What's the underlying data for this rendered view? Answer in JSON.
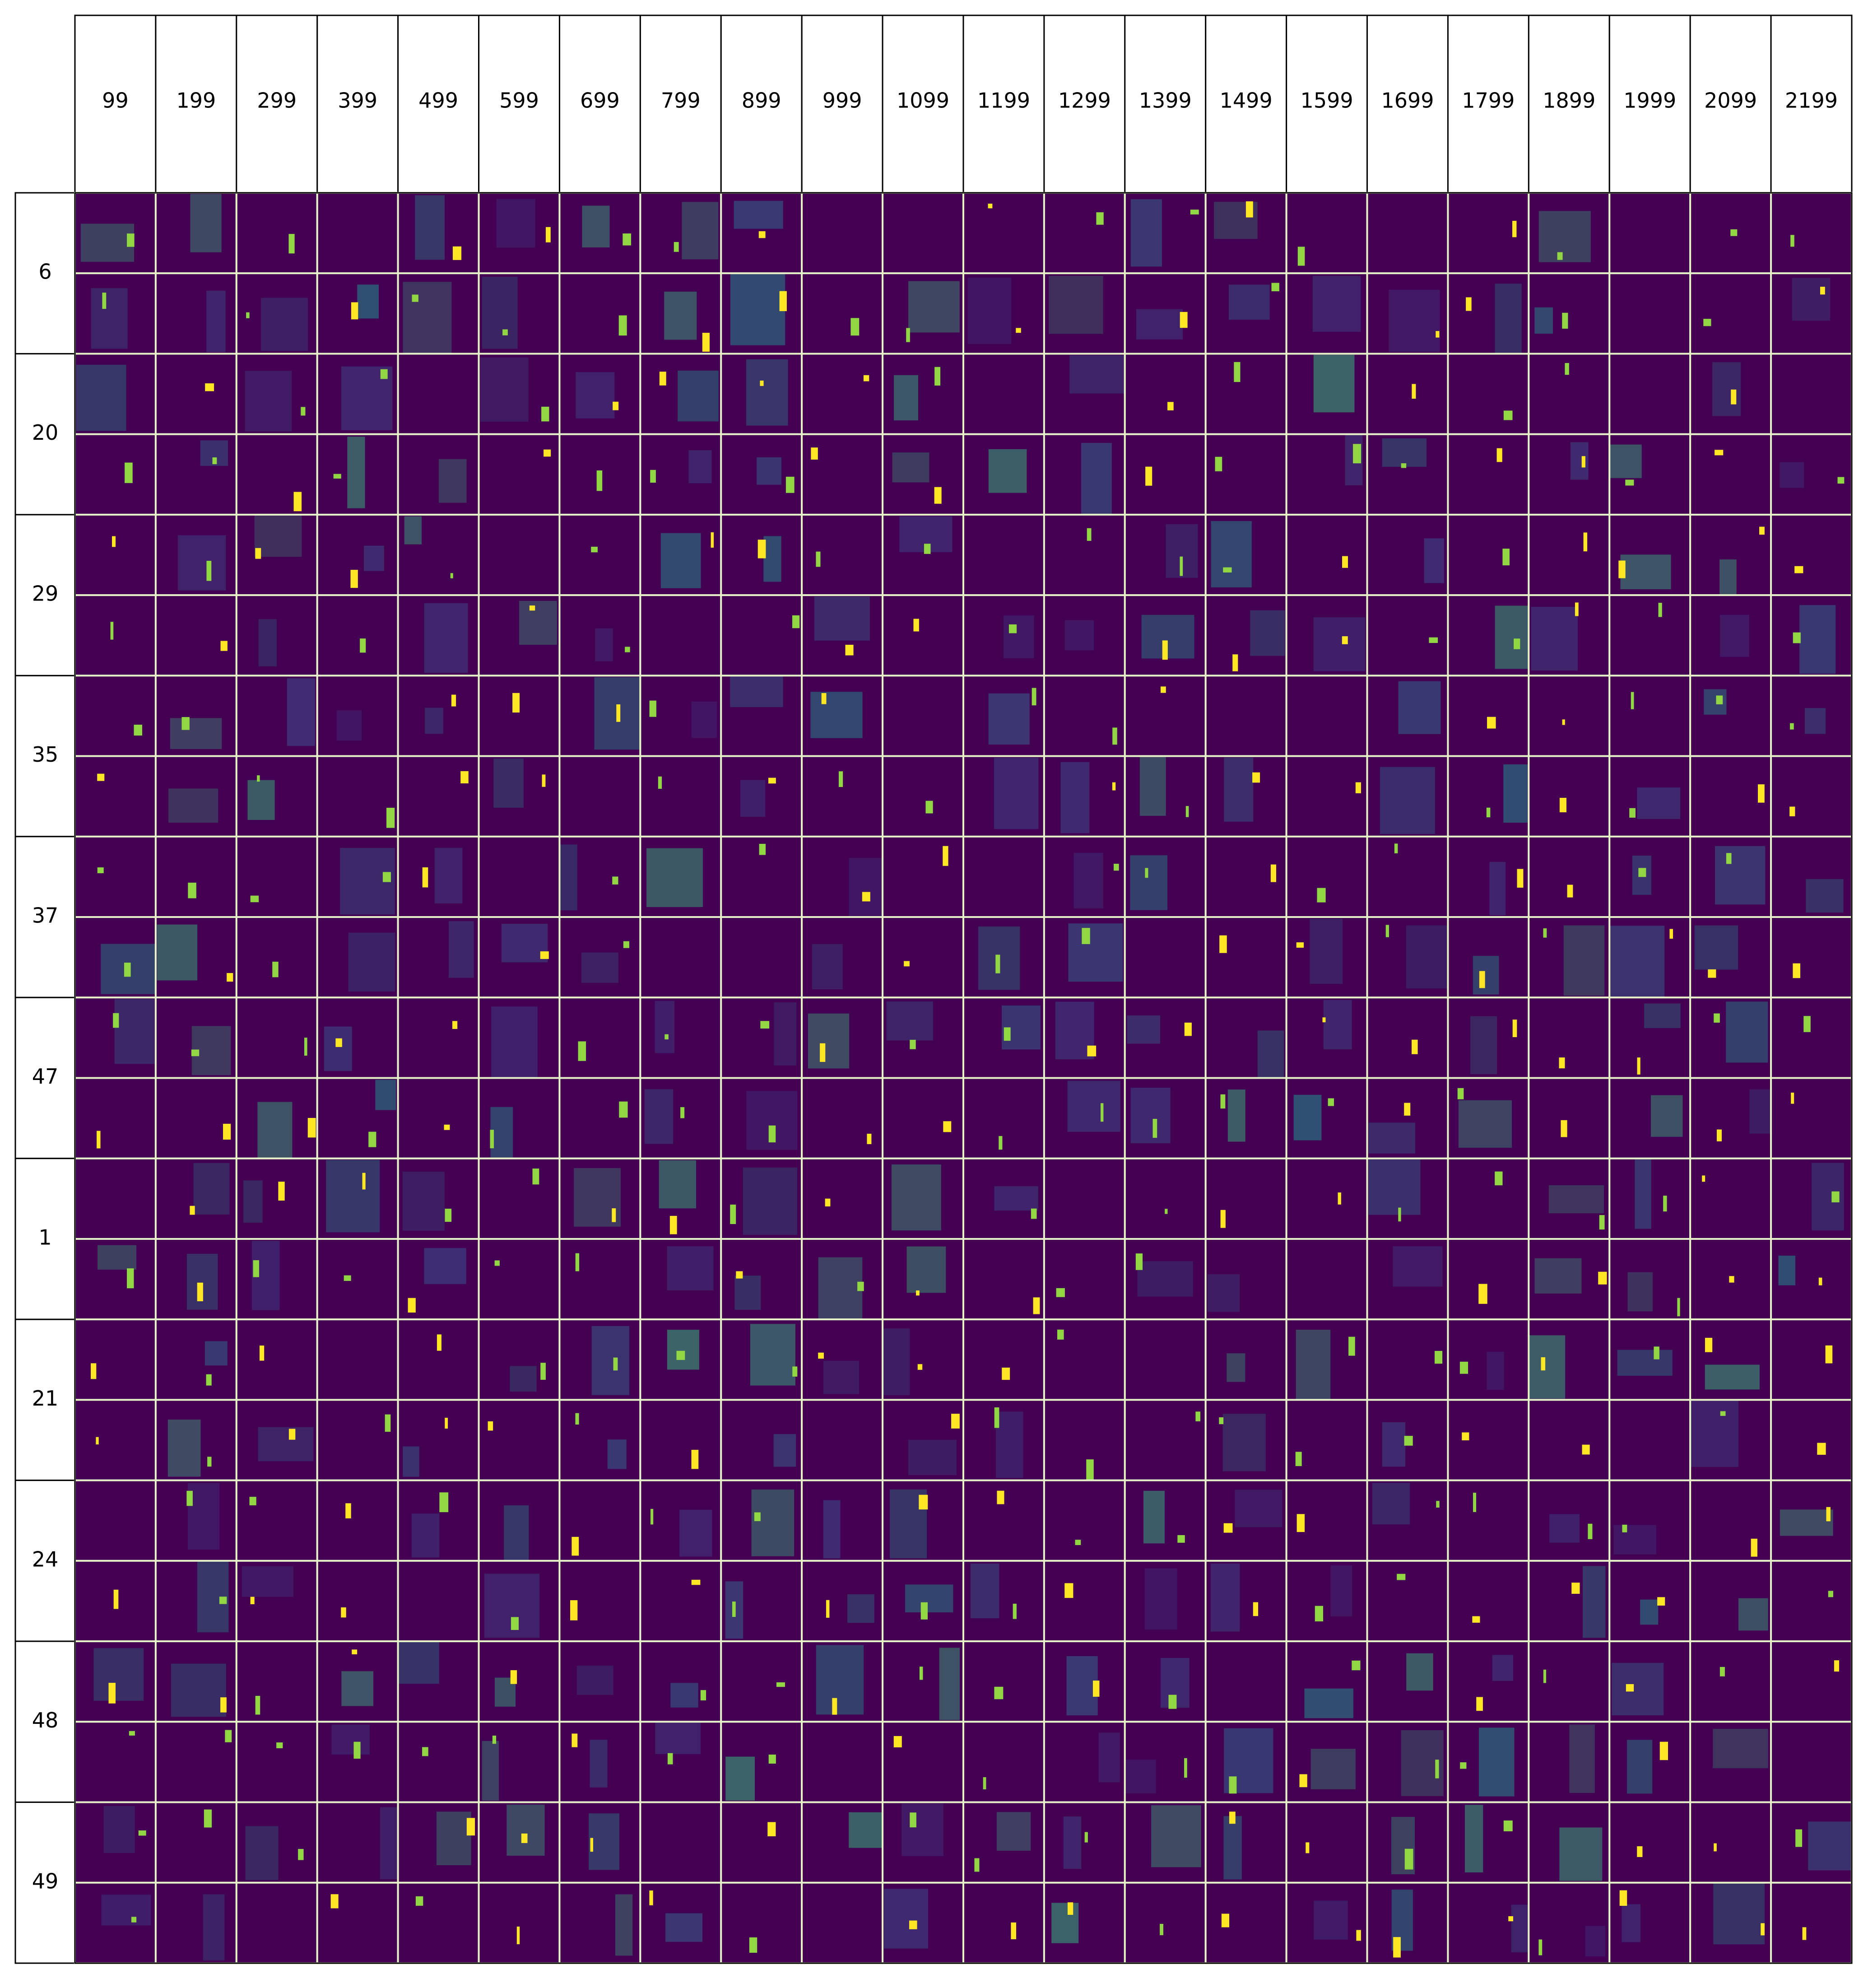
{
  "columns": [
    "99",
    "199",
    "299",
    "399",
    "499",
    "599",
    "699",
    "799",
    "899",
    "999",
    "1099",
    "1199",
    "1299",
    "1399",
    "1499",
    "1599",
    "1699",
    "1799",
    "1899",
    "1999",
    "2099",
    "2199"
  ],
  "rows": [
    "6",
    "20",
    "29",
    "35",
    "37",
    "47",
    "1",
    "21",
    "24",
    "48",
    "49"
  ]
}
